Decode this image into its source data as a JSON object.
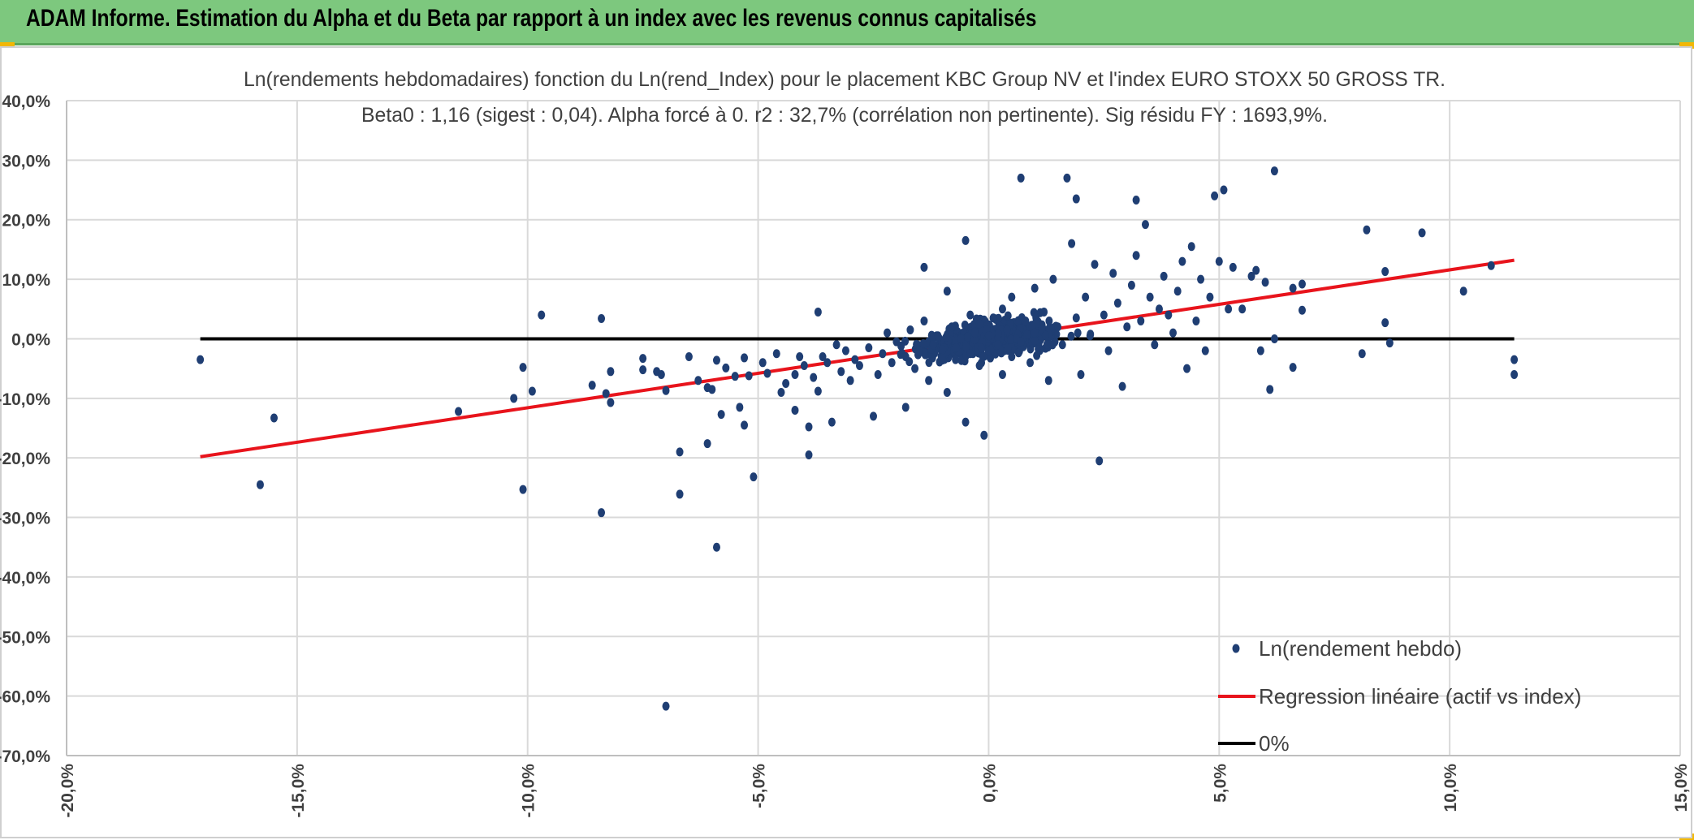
{
  "header": {
    "title": "ADAM Informe. Estimation du Alpha et du Beta par rapport à un index avec les revenus connus capitalisés"
  },
  "chart_data": {
    "type": "scatter",
    "title": "Ln(rendements hebdomadaires) fonction du Ln(rend_Index) pour le placement KBC Group NV et l'index EURO STOXX 50 GROSS TR.",
    "subtitle": "Beta0 : 1,16 (sigest : 0,04). Alpha forcé à 0. r2 : 32,7% (corrélation non pertinente). Sig résidu FY : 1693,9%.",
    "xlim": [
      -0.2,
      0.15
    ],
    "ylim": [
      -0.7,
      0.4
    ],
    "x_ticks": [
      -0.2,
      -0.15,
      -0.1,
      -0.05,
      0.0,
      0.05,
      0.1,
      0.15
    ],
    "x_tick_labels": [
      "-20,0%",
      "-15,0%",
      "-10,0%",
      "-5,0%",
      "0,0%",
      "5,0%",
      "10,0%",
      "15,0%"
    ],
    "y_ticks": [
      0.4,
      0.3,
      0.2,
      0.1,
      0.0,
      -0.1,
      -0.2,
      -0.3,
      -0.4,
      -0.5,
      -0.6,
      -0.7
    ],
    "y_tick_labels": [
      "40,0%",
      "30,0%",
      "20,0%",
      "10,0%",
      "0,0%",
      "-10,0%",
      "-20,0%",
      "-30,0%",
      "-40,0%",
      "-50,0%",
      "-60,0%",
      "-70,0%"
    ],
    "grid": true,
    "legend_position": "bottom-right",
    "series": [
      {
        "name": "Ln(rendement hebdo)",
        "kind": "scatter",
        "color": "#1f3e73",
        "points": [
          [
            -0.171,
            -0.035
          ],
          [
            -0.158,
            -0.245
          ],
          [
            -0.155,
            -0.133
          ],
          [
            -0.115,
            -0.122
          ],
          [
            -0.103,
            -0.1
          ],
          [
            -0.101,
            -0.048
          ],
          [
            -0.101,
            -0.253
          ],
          [
            -0.099,
            -0.088
          ],
          [
            -0.097,
            0.04
          ],
          [
            -0.086,
            -0.078
          ],
          [
            -0.084,
            -0.292
          ],
          [
            -0.084,
            0.034
          ],
          [
            -0.083,
            -0.092
          ],
          [
            -0.082,
            -0.055
          ],
          [
            -0.082,
            -0.107
          ],
          [
            -0.075,
            -0.033
          ],
          [
            -0.075,
            -0.052
          ],
          [
            -0.072,
            -0.055
          ],
          [
            -0.071,
            -0.06
          ],
          [
            -0.07,
            -0.087
          ],
          [
            -0.07,
            -0.617
          ],
          [
            -0.067,
            -0.19
          ],
          [
            -0.067,
            -0.261
          ],
          [
            -0.065,
            -0.03
          ],
          [
            -0.063,
            -0.07
          ],
          [
            -0.061,
            -0.082
          ],
          [
            -0.061,
            -0.176
          ],
          [
            -0.06,
            -0.085
          ],
          [
            -0.059,
            -0.35
          ],
          [
            -0.059,
            -0.036
          ],
          [
            -0.058,
            -0.127
          ],
          [
            -0.057,
            -0.049
          ],
          [
            -0.055,
            -0.063
          ],
          [
            -0.054,
            -0.115
          ],
          [
            -0.053,
            -0.032
          ],
          [
            -0.053,
            -0.145
          ],
          [
            -0.052,
            -0.062
          ],
          [
            -0.051,
            -0.232
          ],
          [
            -0.049,
            -0.04
          ],
          [
            -0.048,
            -0.058
          ],
          [
            -0.046,
            -0.025
          ],
          [
            -0.045,
            -0.09
          ],
          [
            -0.044,
            -0.075
          ],
          [
            -0.042,
            -0.06
          ],
          [
            -0.042,
            -0.12
          ],
          [
            -0.041,
            -0.03
          ],
          [
            -0.04,
            -0.045
          ],
          [
            -0.039,
            -0.195
          ],
          [
            -0.039,
            -0.148
          ],
          [
            -0.038,
            -0.065
          ],
          [
            -0.037,
            -0.088
          ],
          [
            -0.037,
            0.045
          ],
          [
            -0.036,
            -0.03
          ],
          [
            -0.035,
            -0.04
          ],
          [
            -0.034,
            -0.14
          ],
          [
            -0.033,
            -0.01
          ],
          [
            -0.032,
            -0.055
          ],
          [
            -0.031,
            -0.02
          ],
          [
            -0.03,
            -0.07
          ],
          [
            -0.029,
            -0.035
          ],
          [
            -0.028,
            -0.045
          ],
          [
            -0.026,
            -0.015
          ],
          [
            -0.025,
            -0.13
          ],
          [
            -0.024,
            -0.06
          ],
          [
            -0.023,
            -0.025
          ],
          [
            -0.022,
            0.01
          ],
          [
            -0.021,
            -0.04
          ],
          [
            -0.02,
            -0.005
          ],
          [
            -0.018,
            -0.115
          ],
          [
            -0.018,
            -0.03
          ],
          [
            -0.017,
            0.015
          ],
          [
            -0.016,
            -0.05
          ],
          [
            -0.015,
            -0.02
          ],
          [
            -0.014,
            0.12
          ],
          [
            -0.014,
            0.03
          ],
          [
            -0.013,
            -0.07
          ],
          [
            -0.012,
            -0.01
          ],
          [
            -0.011,
            0.005
          ],
          [
            -0.01,
            -0.035
          ],
          [
            -0.009,
            0.08
          ],
          [
            -0.009,
            -0.09
          ],
          [
            -0.008,
            0.02
          ],
          [
            -0.007,
            -0.015
          ],
          [
            -0.006,
            0.0
          ],
          [
            -0.005,
            -0.14
          ],
          [
            -0.005,
            0.165
          ],
          [
            -0.004,
            0.04
          ],
          [
            -0.004,
            -0.025
          ],
          [
            -0.003,
            0.01
          ],
          [
            -0.002,
            -0.045
          ],
          [
            -0.002,
            0.025
          ],
          [
            -0.001,
            -0.162
          ],
          [
            0.0,
            0.005
          ],
          [
            0.0,
            -0.02
          ],
          [
            0.001,
            0.035
          ],
          [
            0.002,
            -0.01
          ],
          [
            0.003,
            0.05
          ],
          [
            0.003,
            -0.06
          ],
          [
            0.004,
            0.015
          ],
          [
            0.005,
            -0.03
          ],
          [
            0.005,
            0.07
          ],
          [
            0.006,
            0.0
          ],
          [
            0.007,
            0.27
          ],
          [
            0.007,
            -0.005
          ],
          [
            0.008,
            0.03
          ],
          [
            0.009,
            -0.04
          ],
          [
            0.01,
            0.085
          ],
          [
            0.01,
            0.01
          ],
          [
            0.011,
            -0.015
          ],
          [
            0.012,
            0.045
          ],
          [
            0.013,
            -0.07
          ],
          [
            0.014,
            0.1
          ],
          [
            0.015,
            0.02
          ],
          [
            0.016,
            -0.01
          ],
          [
            0.017,
            0.27
          ],
          [
            0.018,
            0.16
          ],
          [
            0.019,
            0.235
          ],
          [
            0.019,
            0.035
          ],
          [
            0.02,
            -0.06
          ],
          [
            0.021,
            0.07
          ],
          [
            0.022,
            0.005
          ],
          [
            0.023,
            0.125
          ],
          [
            0.024,
            -0.205
          ],
          [
            0.025,
            0.04
          ],
          [
            0.026,
            -0.02
          ],
          [
            0.027,
            0.11
          ],
          [
            0.028,
            0.06
          ],
          [
            0.029,
            -0.08
          ],
          [
            0.03,
            0.02
          ],
          [
            0.031,
            0.09
          ],
          [
            0.032,
            0.14
          ],
          [
            0.032,
            0.233
          ],
          [
            0.033,
            0.03
          ],
          [
            0.034,
            0.192
          ],
          [
            0.035,
            0.07
          ],
          [
            0.036,
            -0.01
          ],
          [
            0.037,
            0.05
          ],
          [
            0.038,
            0.105
          ],
          [
            0.039,
            0.04
          ],
          [
            0.04,
            0.01
          ],
          [
            0.041,
            0.08
          ],
          [
            0.042,
            0.13
          ],
          [
            0.043,
            -0.05
          ],
          [
            0.044,
            0.155
          ],
          [
            0.045,
            0.03
          ],
          [
            0.046,
            0.1
          ],
          [
            0.047,
            -0.02
          ],
          [
            0.048,
            0.07
          ],
          [
            0.049,
            0.24
          ],
          [
            0.05,
            0.13
          ],
          [
            0.051,
            0.25
          ],
          [
            0.052,
            0.05
          ],
          [
            0.053,
            0.12
          ],
          [
            0.055,
            0.05
          ],
          [
            0.057,
            0.105
          ],
          [
            0.058,
            0.115
          ],
          [
            0.059,
            -0.02
          ],
          [
            0.06,
            0.095
          ],
          [
            0.061,
            -0.085
          ],
          [
            0.062,
            0.282
          ],
          [
            0.062,
            0.0
          ],
          [
            0.066,
            -0.048
          ],
          [
            0.066,
            0.085
          ],
          [
            0.068,
            0.092
          ],
          [
            0.068,
            0.048
          ],
          [
            0.081,
            -0.025
          ],
          [
            0.082,
            0.183
          ],
          [
            0.086,
            0.113
          ],
          [
            0.086,
            0.027
          ],
          [
            0.087,
            -0.007
          ],
          [
            0.094,
            0.178
          ],
          [
            0.103,
            0.08
          ],
          [
            0.109,
            0.123
          ],
          [
            0.114,
            -0.035
          ],
          [
            0.114,
            -0.06
          ]
        ],
        "cluster": {
          "x_center": 0.0,
          "x_spread": 0.018,
          "y_slope": 1.16,
          "y_noise": 0.03,
          "count": 700
        }
      },
      {
        "name": "Regression linéaire (actif vs index)",
        "kind": "line",
        "color": "#e8141c",
        "x": [
          -0.171,
          0.114
        ],
        "y": [
          -0.198,
          0.132
        ]
      },
      {
        "name": "0%",
        "kind": "line",
        "color": "#000000",
        "x": [
          -0.171,
          0.114
        ],
        "y": [
          0.0,
          0.0
        ]
      }
    ]
  }
}
